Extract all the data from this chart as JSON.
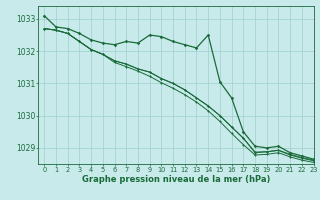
{
  "background_color": "#c8eaea",
  "plot_bg_color": "#c8eaea",
  "grid_color": "#9ecece",
  "line_color": "#1a6b3a",
  "title": "Graphe pression niveau de la mer (hPa)",
  "xlim": [
    -0.5,
    23
  ],
  "ylim": [
    1028.5,
    1033.4
  ],
  "yticks": [
    1029,
    1030,
    1031,
    1032,
    1033
  ],
  "xticks": [
    0,
    1,
    2,
    3,
    4,
    5,
    6,
    7,
    8,
    9,
    10,
    11,
    12,
    13,
    14,
    15,
    16,
    17,
    18,
    19,
    20,
    21,
    22,
    23
  ],
  "series": [
    [
      1033.1,
      1032.75,
      1032.7,
      1032.55,
      1032.35,
      1032.25,
      1032.2,
      1032.3,
      1032.25,
      1032.5,
      1032.45,
      1032.3,
      1032.2,
      1032.1,
      1032.5,
      1031.05,
      1030.55,
      1029.5,
      1029.05,
      1029.0,
      1029.05,
      1028.85,
      1028.75,
      1028.65
    ],
    [
      1032.7,
      1032.65,
      1032.55,
      1032.3,
      1032.05,
      1031.9,
      1031.7,
      1031.6,
      1031.45,
      1031.35,
      1031.15,
      1031.0,
      1030.8,
      1030.55,
      1030.3,
      1030.0,
      1029.65,
      1029.3,
      1028.85,
      1028.88,
      1028.92,
      1028.78,
      1028.68,
      1028.6
    ],
    [
      1032.7,
      1032.65,
      1032.55,
      1032.3,
      1032.05,
      1031.9,
      1031.65,
      1031.52,
      1031.38,
      1031.22,
      1031.02,
      1030.85,
      1030.65,
      1030.42,
      1030.15,
      1029.82,
      1029.45,
      1029.1,
      1028.78,
      1028.8,
      1028.85,
      1028.72,
      1028.62,
      1028.55
    ],
    [
      1032.7,
      1032.65,
      1032.55,
      1032.3,
      1032.05,
      1031.9,
      1031.7,
      1031.6,
      1031.45,
      1031.35,
      1031.15,
      1031.0,
      1030.8,
      1030.55,
      1030.3,
      1030.0,
      1029.65,
      1029.3,
      1028.87,
      1028.88,
      1028.93,
      1028.8,
      1028.7,
      1028.62
    ]
  ]
}
